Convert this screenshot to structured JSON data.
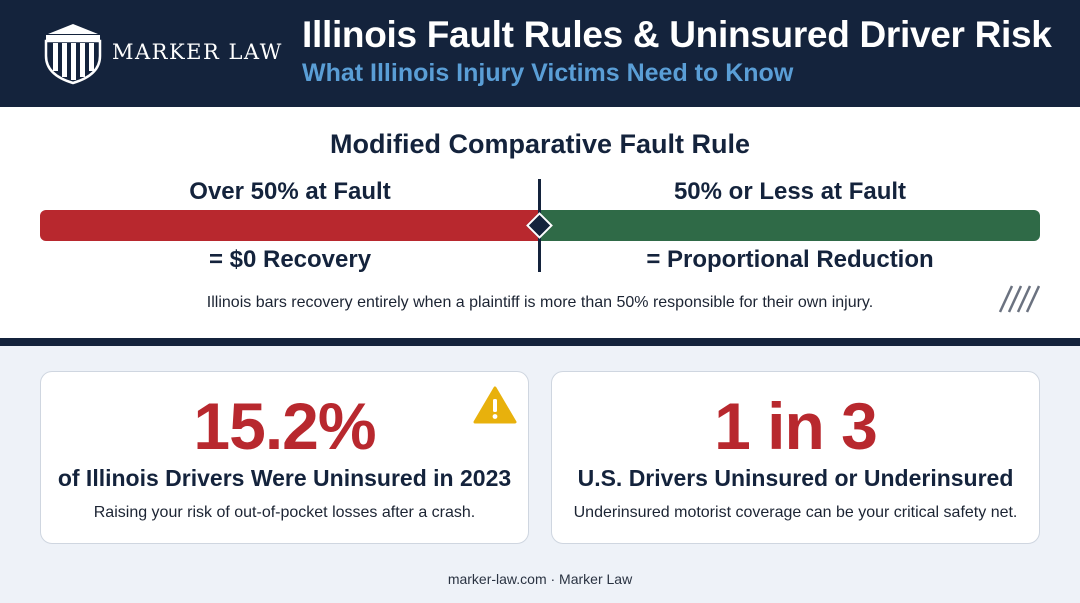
{
  "header": {
    "brand": "MARKER LAW",
    "title": "Illinois Fault Rules & Uninsured Driver Risk",
    "subtitle": "What Illinois Injury Victims Need to Know",
    "logo_icon": "courthouse-pillars-shield-icon"
  },
  "fault_rule": {
    "title": "Modified Comparative Fault Rule",
    "over": {
      "label": "Over 50% at Fault",
      "result": "= $0 Recovery",
      "color": "#b8282e"
    },
    "under": {
      "label": "50% or Less at Fault",
      "result": "= Proportional Reduction",
      "color": "#2f6a47"
    },
    "threshold_percent": 50,
    "note": "Illinois bars recovery entirely when a plaintiff is more than 50% responsible for their own injury."
  },
  "stats": [
    {
      "value": "15.2%",
      "heading": "of Illinois Drivers Were Uninsured in 2023",
      "description": "Raising your risk of out-of-pocket losses after a crash.",
      "icon": "warning-triangle-icon"
    },
    {
      "value": "1 in 3",
      "heading": "U.S. Drivers Uninsured or Underinsured",
      "description": "Underinsured motorist coverage can be your critical safety net."
    }
  ],
  "footer": {
    "text": "marker-law.com · Marker Law"
  },
  "colors": {
    "navy": "#14233c",
    "red": "#b8282e",
    "green": "#2f6a47",
    "accent_blue": "#5a9ed6",
    "warning": "#e8b10c"
  }
}
